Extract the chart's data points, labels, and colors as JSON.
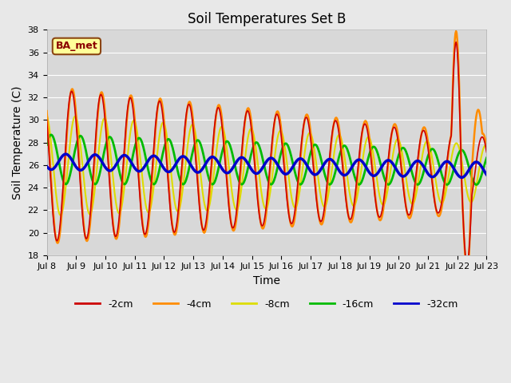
{
  "title": "Soil Temperatures Set B",
  "xlabel": "Time",
  "ylabel": "Soil Temperature (C)",
  "ylim": [
    18,
    38
  ],
  "yticks": [
    18,
    20,
    22,
    24,
    26,
    28,
    30,
    32,
    34,
    36,
    38
  ],
  "fig_bg_color": "#e8e8e8",
  "plot_bg_color": "#d8d8d8",
  "grid_color": "#ffffff",
  "line_colors": {
    "-2cm": "#cc0000",
    "-4cm": "#ff8c00",
    "-8cm": "#dddd00",
    "-16cm": "#00bb00",
    "-32cm": "#0000cc"
  },
  "line_widths": {
    "-2cm": 1.2,
    "-4cm": 1.8,
    "-8cm": 1.5,
    "-16cm": 2.0,
    "-32cm": 2.5
  },
  "annotation_text": "BA_met",
  "x_tick_labels": [
    "Jul 8",
    "Jul 9",
    "Jul 10",
    "Jul 11",
    "Jul 12",
    "Jul 13",
    "Jul 14",
    "Jul 15",
    "Jul 16",
    "Jul 17",
    "Jul 18",
    "Jul 19",
    "Jul 20",
    "Jul 21",
    "Jul 22",
    "Jul 23"
  ],
  "title_fontsize": 12,
  "tick_fontsize": 8,
  "label_fontsize": 10
}
